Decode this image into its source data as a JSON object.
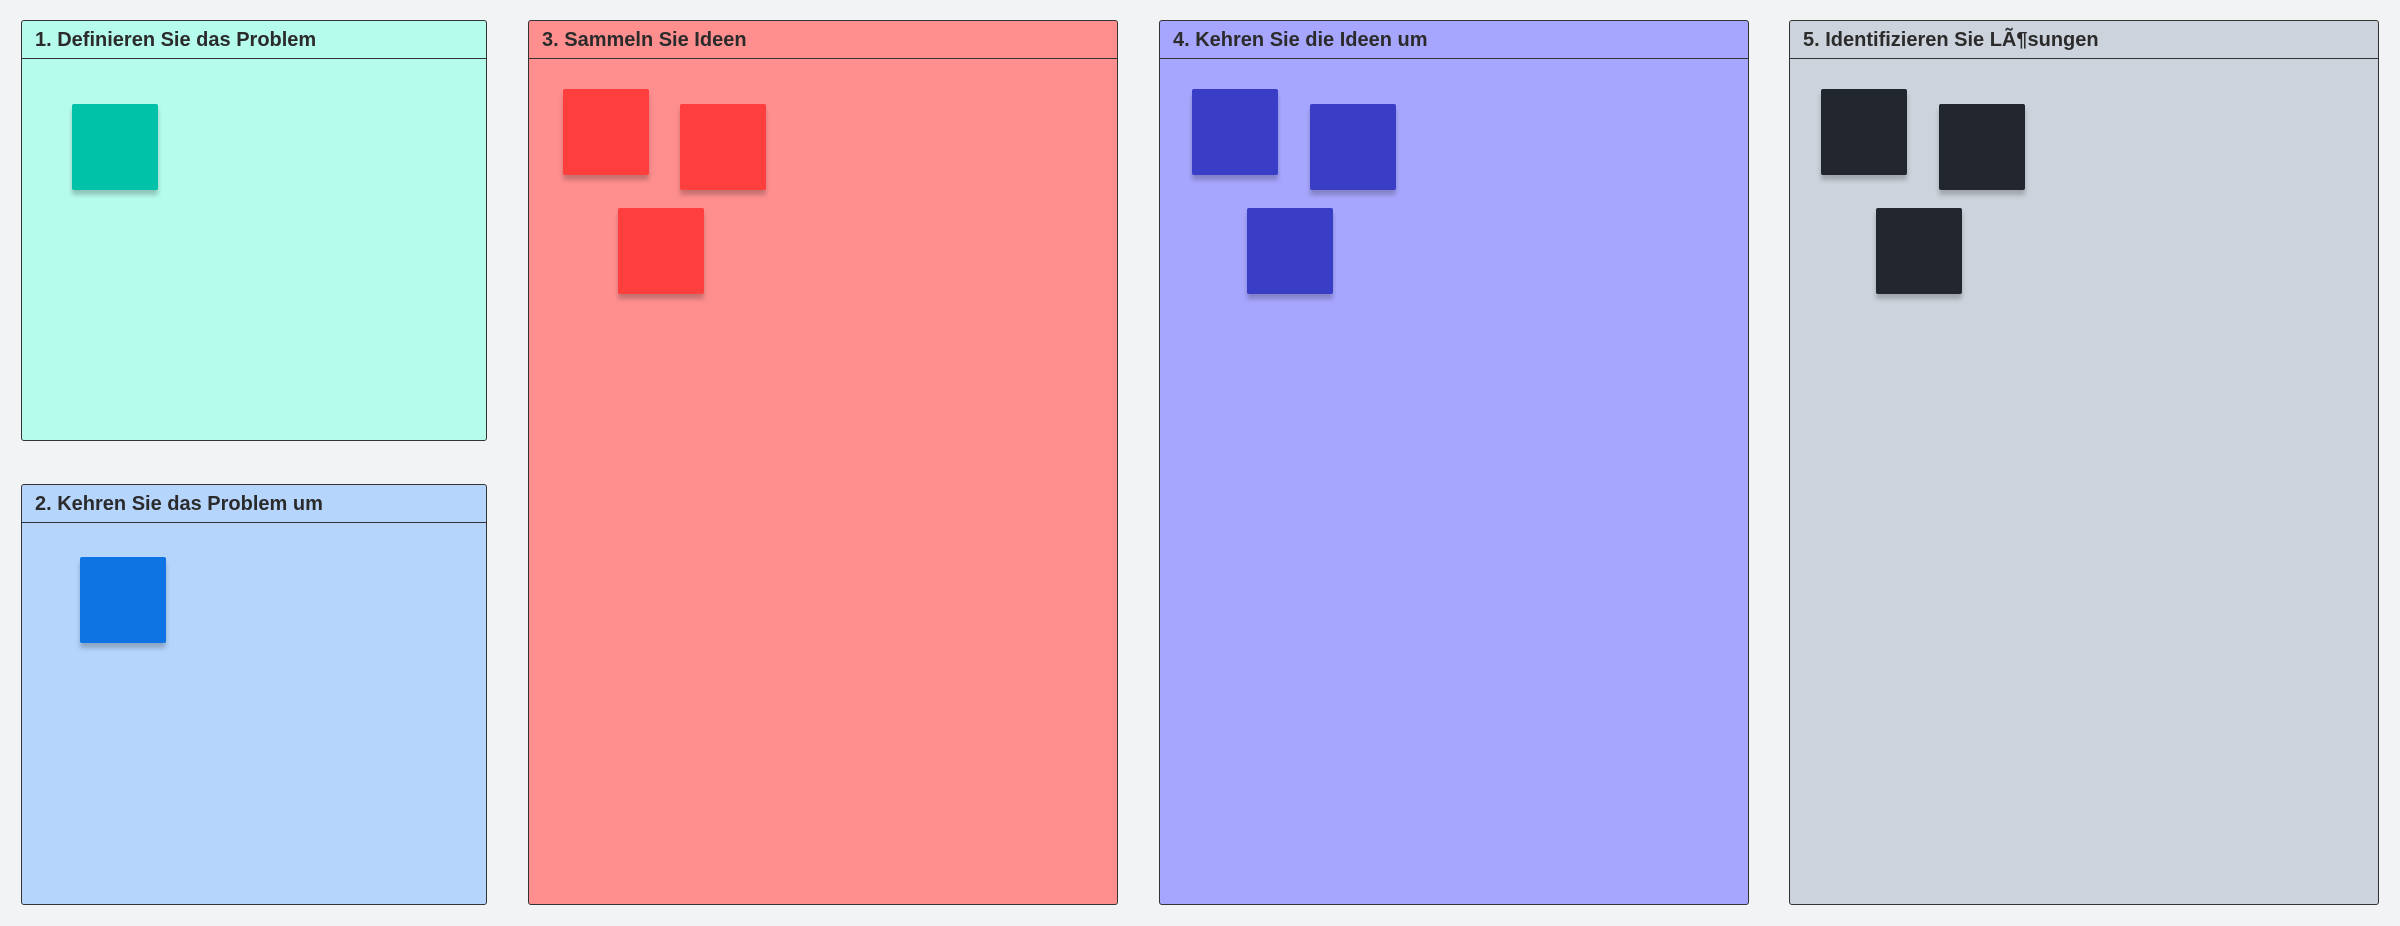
{
  "frames": [
    {
      "title": "1. Definieren Sie das Problem",
      "background": "#b6fcec",
      "sticky_color": "#00c2a8",
      "sticky_count": 1
    },
    {
      "title": "2. Kehren Sie das Problem um",
      "background": "#b5d5fd",
      "sticky_color": "#0e73e3",
      "sticky_count": 1
    },
    {
      "title": "3. Sammeln Sie Ideen",
      "background": "#ff8f8f",
      "sticky_color": "#ff3e3e",
      "sticky_count": 3
    },
    {
      "title": "4. Kehren Sie die Ideen um",
      "background": "#a6a6fe",
      "sticky_color": "#3a3ec7",
      "sticky_count": 3
    },
    {
      "title": "5. Identifizieren Sie LÃ¶sungen",
      "background": "#cdd3dc",
      "sticky_color": "#22262f",
      "sticky_count": 3
    }
  ],
  "canvas_background": "#f2f3f5"
}
